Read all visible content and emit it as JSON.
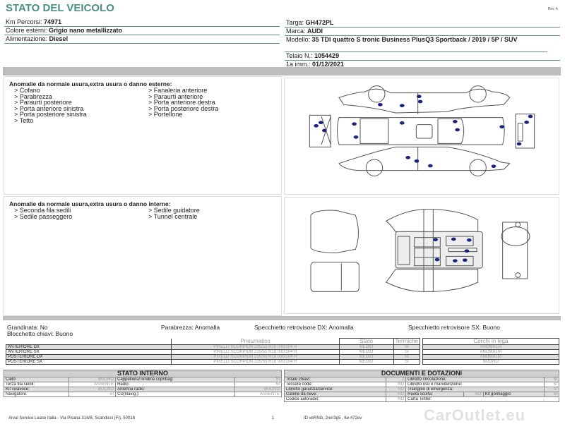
{
  "header": {
    "title": "STATO DEL VEICOLO",
    "rev": "Rev. A"
  },
  "vehicle_left": [
    {
      "label": "Km Percorsi: ",
      "value": "74971"
    },
    {
      "label": "Colore esterni: ",
      "value": "Grigio nano metallizzato"
    },
    {
      "label": "Alimentazione: ",
      "value": "Diesel"
    }
  ],
  "vehicle_right": [
    {
      "label": "Targa: ",
      "value": "GH472PL"
    },
    {
      "label": "Marca: ",
      "value": "AUDI"
    },
    {
      "label": "Modello: ",
      "value": "35 TDI quattro S tronic Business PlusQ3 Sportback / 2019 / 5P / SUV"
    },
    {
      "label": "Telaio N.: ",
      "value": "1054429"
    },
    {
      "label": "1a imm.: ",
      "value": "01/12/2021"
    }
  ],
  "exterior": {
    "heading": "Anomalie da normale usura,extra usura o danno esterne:",
    "items": [
      "> Cofano",
      "> Parabrezza",
      "> Paraurti posteriore",
      "> Porta anteriore sinistra",
      "> Porta posteriore sinistra",
      "> Tetto",
      "> Fanaleria anteriore",
      "> Paraurti anteriore",
      "> Porta anteriore destra",
      "> Porta posteriore destra",
      "> Portellone"
    ]
  },
  "interior": {
    "heading": "Anomalie da normale usura,extra usura o danno interne:",
    "items": [
      "> Seconda fila sedili",
      "> Sedile passeggero",
      "> Sedile guidatore",
      "> Tunnel centrale"
    ]
  },
  "diagram": {
    "marker_color": "#1a237e"
  },
  "checks": {
    "grandinata": "Grandinata: No",
    "blocchetto": "Blocchetto chiavi: Buono",
    "parabrezza": "Parabrezza: Anomalla",
    "spec_dx": "Specchietto retrovisore DX: Anomalla",
    "spec_sx": "Specchietto retrovisore SX: Buono"
  },
  "tyres": {
    "headers": [
      "Pneumatico",
      "Stato",
      "Termiche"
    ],
    "rows": [
      {
        "pos": "ANTERIORE DX",
        "tyre": "PIRELLI SCORPION  235/55 R18 000/104 H",
        "stato": "MEDIO",
        "termiche": "SI"
      },
      {
        "pos": "ANTERIORE SX",
        "tyre": "PIRELLI SCORPION  235/55 R18 000/104 H",
        "stato": "MEDIO",
        "termiche": "SI"
      },
      {
        "pos": "POSTERIORE DX",
        "tyre": "PIRELLI SCORPION  235/55 R18 000/104 H",
        "stato": "MEDIO",
        "termiche": "SI"
      },
      {
        "pos": "POSTERIORE SX",
        "tyre": "PIRELLI SCORPION  235/55 R18 000/104 H",
        "stato": "MEDIO",
        "termiche": "SI"
      }
    ]
  },
  "rims": {
    "header": "Cerchi in lega",
    "values": [
      "ANOMALIA",
      "ANOMALIA",
      "ANOMALIA",
      "BUONO"
    ]
  },
  "stato_interno": {
    "title": "STATO INTERNO",
    "rows": [
      [
        "Cielo:",
        "BUONO",
        "Cappelliera/Tendina copribag:",
        "SI"
      ],
      [
        "Terza fila sedili:",
        "ASSENTE",
        "Radio:",
        "SI"
      ],
      [
        "Kit vivavoce:",
        "BUONO",
        "Antenna radio:",
        "BUONO"
      ],
      [
        "Navigatore:",
        "SI",
        "CD(Navig.):",
        "ASSENTE"
      ]
    ]
  },
  "documenti": {
    "title": "DOCUMENTI E DOTAZIONI",
    "rows": [
      [
        "Totale chiavi:",
        "2",
        "Libretto circolazione:",
        "SI"
      ],
      [
        "Tessere code:",
        "NO",
        "Libretto uso e manutenzione:",
        "SI"
      ],
      [
        "Libretto garanzia/service:",
        "NO",
        "Triangolo di emergenza:",
        "SI"
      ]
    ],
    "row4": [
      "Catene da neve:",
      "NO",
      "Ruota scorta:",
      "NO",
      "Kit gonfiaggio:",
      "SI"
    ],
    "row5": [
      "Codice autoradio:",
      "NO",
      "Carta Tefiter:"
    ]
  },
  "footer": {
    "address": "Arval Service Lease Italia - Via Pisana 314/B, Scandicci (FI), 50018",
    "page": "1",
    "id": "ID veRNG, 2ne!3g5 , 6e-472ev",
    "watermark": "CarOutlet.eu"
  }
}
